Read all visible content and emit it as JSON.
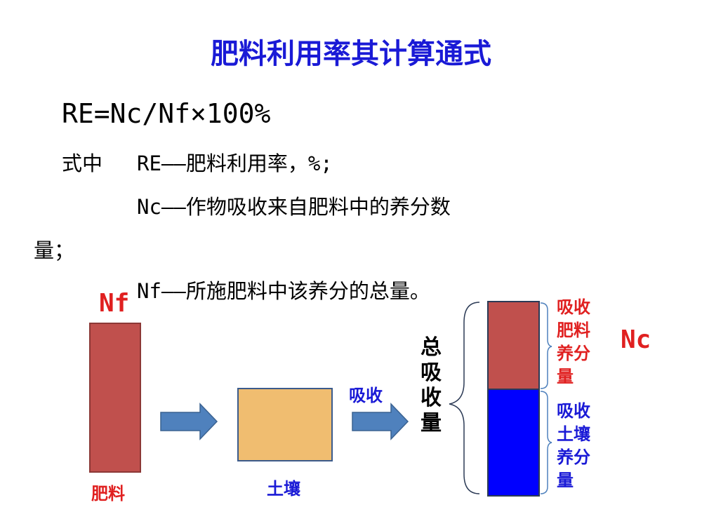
{
  "title": "肥料利用率其计算通式",
  "formula": "RE=Nc/Nf×100%",
  "definitions": {
    "where_label": "式中",
    "re": "RE——肥料利用率，%;",
    "nc": "Nc——作物吸收来自肥料中的养分数",
    "nc_cont": "量；",
    "nf": "Nf——所施肥料中该养分的总量。"
  },
  "diagram": {
    "nf_label": "Nf",
    "nc_label": "Nc",
    "fertilizer_label": "肥料",
    "soil_label": "土壤",
    "absorb_label": "吸收",
    "total_absorption_label": "总吸收量",
    "from_fertilizer_label": "吸收肥料养分量",
    "from_soil_label": "吸收土壤养分量"
  },
  "colors": {
    "title": "#1a1ad6",
    "fertilizer": "#c0504d",
    "soil": "#f0bd70",
    "soil_uptake": "#0000ff",
    "arrow": "#4f81bd",
    "label_red": "#e02020"
  }
}
